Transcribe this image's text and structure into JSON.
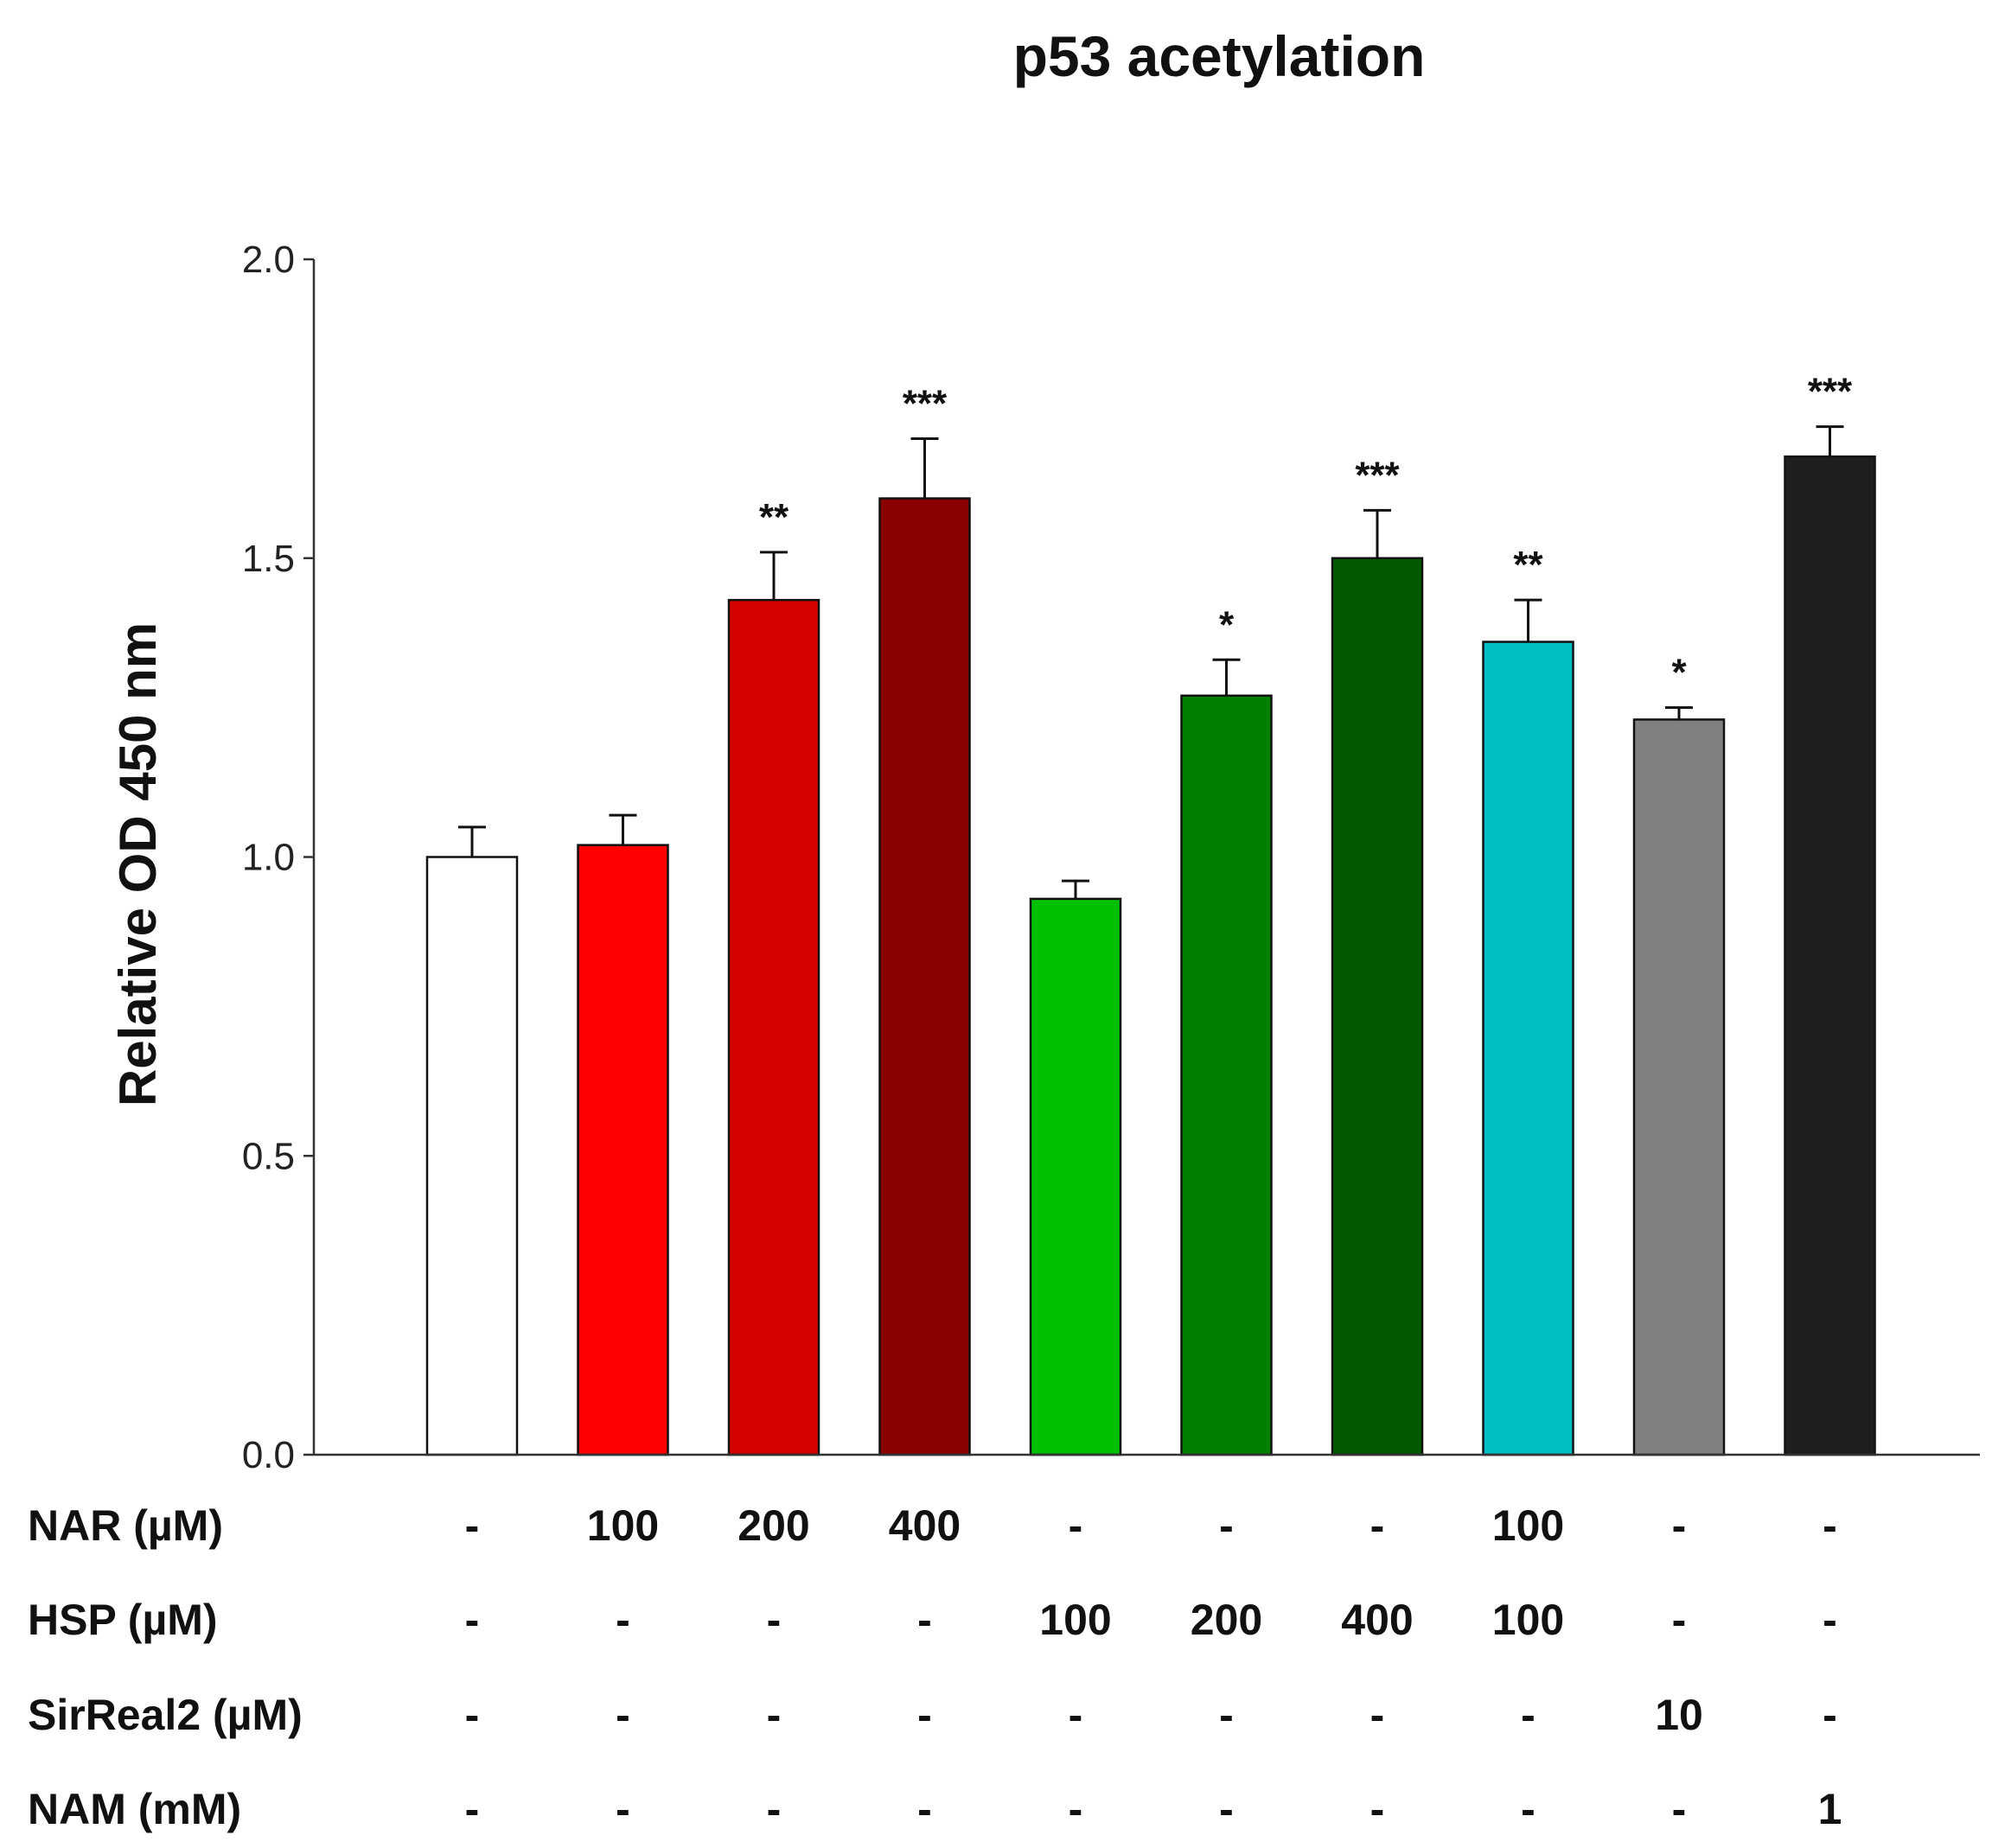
{
  "chart_data": {
    "type": "bar",
    "title": "p53 acetylation",
    "ylabel": "Relative OD 450 nm",
    "xlabel": "",
    "ylim": [
      0,
      2.0
    ],
    "yticks": [
      "0.0",
      "0.5",
      "1.0",
      "1.5",
      "2.0"
    ],
    "ytick_values": [
      0,
      0.5,
      1.0,
      1.5,
      2.0
    ],
    "bars": [
      {
        "value": 1.0,
        "error": 0.05,
        "color": "#ffffff",
        "sig": ""
      },
      {
        "value": 1.02,
        "error": 0.05,
        "color": "#ff0000",
        "sig": ""
      },
      {
        "value": 1.43,
        "error": 0.08,
        "color": "#d50000",
        "sig": "**"
      },
      {
        "value": 1.6,
        "error": 0.1,
        "color": "#8b0000",
        "sig": "***"
      },
      {
        "value": 0.93,
        "error": 0.03,
        "color": "#00c000",
        "sig": ""
      },
      {
        "value": 1.27,
        "error": 0.06,
        "color": "#008000",
        "sig": "*"
      },
      {
        "value": 1.5,
        "error": 0.08,
        "color": "#005800",
        "sig": "***"
      },
      {
        "value": 1.36,
        "error": 0.07,
        "color": "#00bfc4",
        "sig": "**"
      },
      {
        "value": 1.23,
        "error": 0.02,
        "color": "#808080",
        "sig": "*"
      },
      {
        "value": 1.67,
        "error": 0.05,
        "color": "#1e1e1e",
        "sig": "***"
      }
    ],
    "conditions": [
      {
        "label": "NAR (µM)",
        "values": [
          "-",
          "100",
          "200",
          "400",
          "-",
          "-",
          "-",
          "100",
          "-",
          "-"
        ]
      },
      {
        "label": "HSP (µM)",
        "values": [
          "-",
          "-",
          "-",
          "-",
          "100",
          "200",
          "400",
          "100",
          "-",
          "-"
        ]
      },
      {
        "label": "SirReal2 (µM)",
        "values": [
          "-",
          "-",
          "-",
          "-",
          "-",
          "-",
          "-",
          "-",
          "10",
          "-"
        ]
      },
      {
        "label": "NAM (mM)",
        "values": [
          "-",
          "-",
          "-",
          "-",
          "-",
          "-",
          "-",
          "-",
          "-",
          "1"
        ]
      }
    ]
  }
}
